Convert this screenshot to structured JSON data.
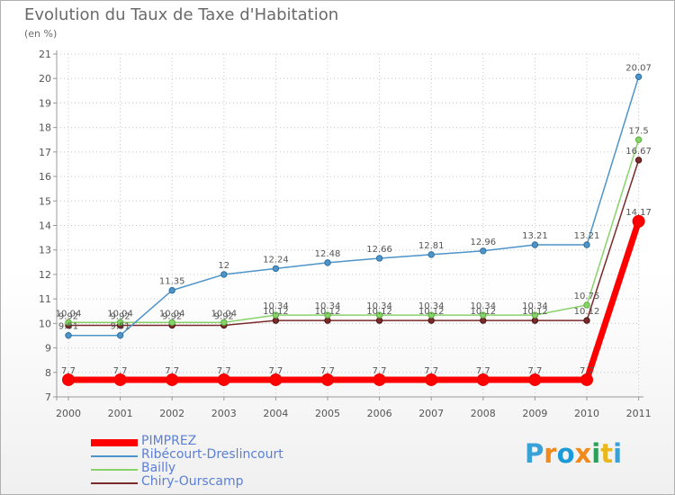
{
  "header": {
    "title": "Evolution du Taux de Taxe d'Habitation",
    "subtitle": "(en %)"
  },
  "brand": {
    "letters": [
      "P",
      "r",
      "o",
      "x",
      "i",
      "t",
      "i"
    ],
    "colors": [
      "#3aa0d8",
      "#f08a1c",
      "#1c9ad8",
      "#f08a1c",
      "#2ca05a",
      "#e8b81c",
      "#3aa0d8"
    ]
  },
  "chart_data": {
    "type": "line",
    "categories": [
      "2000",
      "2001",
      "2002",
      "2003",
      "2004",
      "2005",
      "2006",
      "2007",
      "2008",
      "2009",
      "2010",
      "2011"
    ],
    "ylim": [
      7,
      21
    ],
    "yticks": [
      "7",
      "8",
      "9",
      "10",
      "11",
      "12",
      "13",
      "14",
      "15",
      "16",
      "17",
      "18",
      "19",
      "20",
      "21"
    ],
    "grid": true,
    "legend_position": "bottom-left",
    "series": [
      {
        "name": "PIMPREZ",
        "color": "#ff0000",
        "values": [
          7.7,
          7.7,
          7.7,
          7.7,
          7.7,
          7.7,
          7.7,
          7.7,
          7.7,
          7.7,
          7.7,
          14.17
        ],
        "labels": [
          "7.7",
          "7.7",
          "7.7",
          "7.7",
          "7.7",
          "7.7",
          "7.7",
          "7.7",
          "7.7",
          "7.7",
          "7.7",
          "14.17"
        ]
      },
      {
        "name": "Ribécourt-Dreslincourt",
        "color": "#4d94c8",
        "values": [
          9.51,
          9.51,
          11.35,
          12,
          12.24,
          12.48,
          12.66,
          12.81,
          12.96,
          13.21,
          13.21,
          20.07
        ],
        "labels": [
          "9.51",
          "9.51",
          "11.35",
          "12",
          "12.24",
          "12.48",
          "12.66",
          "12.81",
          "12.96",
          "13.21",
          "13.21",
          "20.07"
        ]
      },
      {
        "name": "Bailly",
        "color": "#88d26a",
        "values": [
          10.04,
          10.04,
          10.04,
          10.04,
          10.34,
          10.34,
          10.34,
          10.34,
          10.34,
          10.34,
          10.75,
          17.5
        ],
        "labels": [
          "10.04",
          "10.04",
          "10.04",
          "10.04",
          "10.34",
          "10.34",
          "10.34",
          "10.34",
          "10.34",
          "10.34",
          "10.75",
          "17.5"
        ]
      },
      {
        "name": "Chiry-Ourscamp",
        "color": "#7a2a2a",
        "values": [
          9.92,
          9.92,
          9.92,
          9.92,
          10.12,
          10.12,
          10.12,
          10.12,
          10.12,
          10.12,
          10.12,
          16.67
        ],
        "labels": [
          "9.92",
          "9.92",
          "9.92",
          "9.92",
          "10.12",
          "10.12",
          "10.12",
          "10.12",
          "10.12",
          "10.12",
          "10.12",
          "16.67"
        ]
      }
    ]
  }
}
